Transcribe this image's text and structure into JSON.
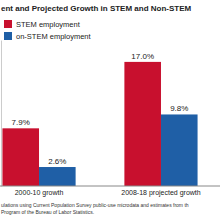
{
  "chart_data": {
    "type": "bar",
    "title": "ent and Projected Growth in STEM and Non-STEM",
    "categories": [
      "2000-10 growth",
      "2008-18 projected growth"
    ],
    "series": [
      {
        "name": "STEM employment",
        "color": "#c8102e",
        "values": [
          7.9,
          17.0
        ],
        "value_labels": [
          "7.9%",
          "17.0%"
        ]
      },
      {
        "name": "on-STEM employment",
        "color": "#1f5fa6",
        "values": [
          2.6,
          9.8
        ],
        "value_labels": [
          "2.6%",
          "9.8%"
        ]
      }
    ],
    "ylim": [
      0,
      20
    ],
    "tick_labels": "x",
    "data_labels": true,
    "legend": "top-left",
    "annotations": [
      "ulations using Current Population Survey public-use microdata and estimates from th",
      "Program of the Bureau of Labor Statistics."
    ]
  }
}
